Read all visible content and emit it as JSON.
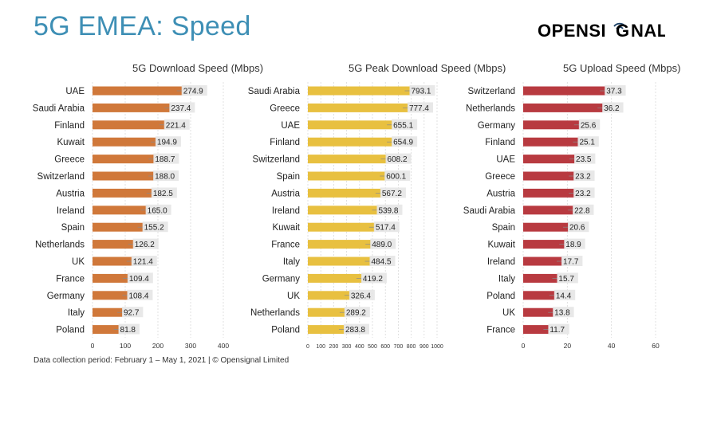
{
  "header": {
    "title": "5G EMEA: Speed",
    "brand_left": "OPENSI",
    "brand_right": "NAL"
  },
  "footnote": "Data collection period: February 1 – May 1, 2021  |  © Opensignal Limited",
  "colors": {
    "title": "#3e8fb5",
    "brand": "#1d4268",
    "download": "#d0783a",
    "peak": "#e8c040",
    "upload": "#b83a40",
    "label_bg": "#e6e6e6",
    "grid": "#d9d9d9"
  },
  "chart_data": [
    {
      "type": "bar",
      "orientation": "horizontal",
      "title": "5G Download Speed (Mbps)",
      "categories": [
        "UAE",
        "Saudi Arabia",
        "Finland",
        "Kuwait",
        "Greece",
        "Switzerland",
        "Austria",
        "Ireland",
        "Spain",
        "Netherlands",
        "UK",
        "France",
        "Germany",
        "Italy",
        "Poland"
      ],
      "values": [
        274.9,
        237.4,
        221.4,
        194.9,
        188.7,
        188.0,
        182.5,
        165.0,
        155.2,
        126.2,
        121.4,
        109.4,
        108.4,
        92.7,
        81.8
      ],
      "value_labels": [
        "274.9",
        "237.4",
        "221.4",
        "194.9",
        "188.7",
        "188.0",
        "182.5",
        "165.0",
        "155.2",
        "126.2",
        "121.4",
        "109.4",
        "108.4",
        "92.7",
        "81.8"
      ],
      "xlim": [
        0,
        400
      ],
      "ticks": [
        0,
        100,
        200,
        300,
        400
      ],
      "tick_labels": [
        "0",
        "100",
        "200",
        "300",
        "400"
      ],
      "color": "#d0783a"
    },
    {
      "type": "bar",
      "orientation": "horizontal",
      "title": "5G Peak Download Speed (Mbps)",
      "categories": [
        "Saudi Arabia",
        "Greece",
        "UAE",
        "Finland",
        "Switzerland",
        "Spain",
        "Austria",
        "Ireland",
        "Kuwait",
        "France",
        "Italy",
        "Germany",
        "UK",
        "Netherlands",
        "Poland"
      ],
      "values": [
        793.1,
        777.4,
        655.1,
        654.9,
        608.2,
        600.1,
        567.2,
        539.8,
        517.4,
        489.0,
        484.5,
        419.2,
        326.4,
        289.2,
        283.8
      ],
      "value_labels": [
        "793.1",
        "777.4",
        "655.1",
        "654.9",
        "608.2",
        "600.1",
        "567.2",
        "539.8",
        "517.4",
        "489.0",
        "484.5",
        "419.2",
        "326.4",
        "289.2",
        "283.8"
      ],
      "xlim": [
        0,
        1000
      ],
      "ticks": [
        0,
        100,
        200,
        300,
        400,
        500,
        600,
        700,
        800,
        900,
        1000
      ],
      "tick_labels": [
        "0",
        "100",
        "200",
        "300",
        "400",
        "500",
        "600",
        "700",
        "800",
        "900",
        "1000"
      ],
      "color": "#e8c040"
    },
    {
      "type": "bar",
      "orientation": "horizontal",
      "title": "5G Upload Speed (Mbps)",
      "categories": [
        "Switzerland",
        "Netherlands",
        "Germany",
        "Finland",
        "UAE",
        "Greece",
        "Austria",
        "Saudi Arabia",
        "Spain",
        "Kuwait",
        "Ireland",
        "Italy",
        "Poland",
        "UK",
        "France"
      ],
      "values": [
        37.3,
        36.2,
        25.6,
        25.1,
        23.5,
        23.2,
        23.2,
        22.8,
        20.6,
        18.9,
        17.7,
        15.7,
        14.4,
        13.8,
        11.7
      ],
      "value_labels": [
        "37.3",
        "36.2",
        "25.6",
        "25.1",
        "23.5",
        "23.2",
        "23.2",
        "22.8",
        "20.6",
        "18.9",
        "17.7",
        "15.7",
        "14.4",
        "13.8",
        "11.7"
      ],
      "xlim": [
        0,
        60
      ],
      "ticks": [
        0,
        20,
        40,
        60
      ],
      "tick_labels": [
        "0",
        "20",
        "40",
        "60"
      ],
      "color": "#b83a40"
    }
  ]
}
